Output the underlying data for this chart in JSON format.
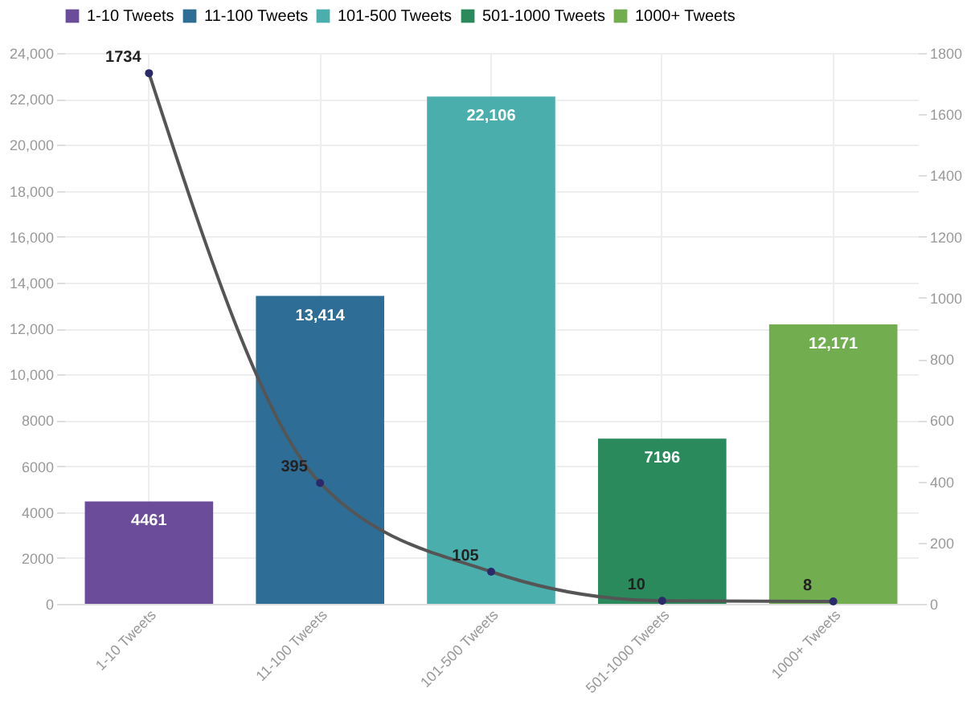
{
  "chart_data": {
    "type": "bar",
    "categories": [
      "1-10 Tweets",
      "11-100 Tweets",
      "101-500 Tweets",
      "501-1000 Tweets",
      "1000+ Tweets"
    ],
    "series": [
      {
        "name": "1-10 Tweets",
        "color": "#6b4c9a",
        "values": [
          4461,
          null,
          null,
          null,
          null
        ],
        "value_labels": [
          "4461",
          null,
          null,
          null,
          null
        ]
      },
      {
        "name": "11-100 Tweets",
        "color": "#2e6e96",
        "values": [
          null,
          13414,
          null,
          null,
          null
        ],
        "value_labels": [
          null,
          "13,414",
          null,
          null,
          null
        ]
      },
      {
        "name": "101-500 Tweets",
        "color": "#4aaead",
        "values": [
          null,
          null,
          22106,
          null,
          null
        ],
        "value_labels": [
          null,
          null,
          "22,106",
          null,
          null
        ]
      },
      {
        "name": "501-1000 Tweets",
        "color": "#2a8a5c",
        "values": [
          null,
          null,
          null,
          7196,
          null
        ],
        "value_labels": [
          null,
          null,
          null,
          "7196",
          null
        ]
      },
      {
        "name": "1000+ Tweets",
        "color": "#72ad4f",
        "values": [
          null,
          null,
          null,
          null,
          12171
        ],
        "value_labels": [
          null,
          null,
          null,
          null,
          "12,171"
        ]
      },
      {
        "type": "line",
        "axis": "y2",
        "color": "#555555",
        "values": [
          1734,
          395,
          105,
          10,
          8
        ],
        "marker": "circle"
      }
    ],
    "ylim": [
      0,
      24000
    ],
    "yticks": [
      0,
      2000,
      4000,
      6000,
      8000,
      {
        "value": 10000,
        "label": "10,000"
      },
      {
        "value": 12000,
        "label": "12,000"
      },
      {
        "value": 14000,
        "label": "14,000"
      },
      {
        "value": 16000,
        "label": "16,000"
      },
      {
        "value": 18000,
        "label": "18,000"
      },
      {
        "value": 20000,
        "label": "20,000"
      },
      {
        "value": 22000,
        "label": "22,000"
      },
      {
        "value": 24000,
        "label": "24,000"
      }
    ],
    "y2lim": [
      0,
      1800
    ],
    "y2ticks": [
      0,
      200,
      400,
      600,
      800,
      1000,
      1200,
      1400,
      1600,
      1800
    ],
    "grid": true,
    "legend": "top left",
    "data_labels": true
  }
}
